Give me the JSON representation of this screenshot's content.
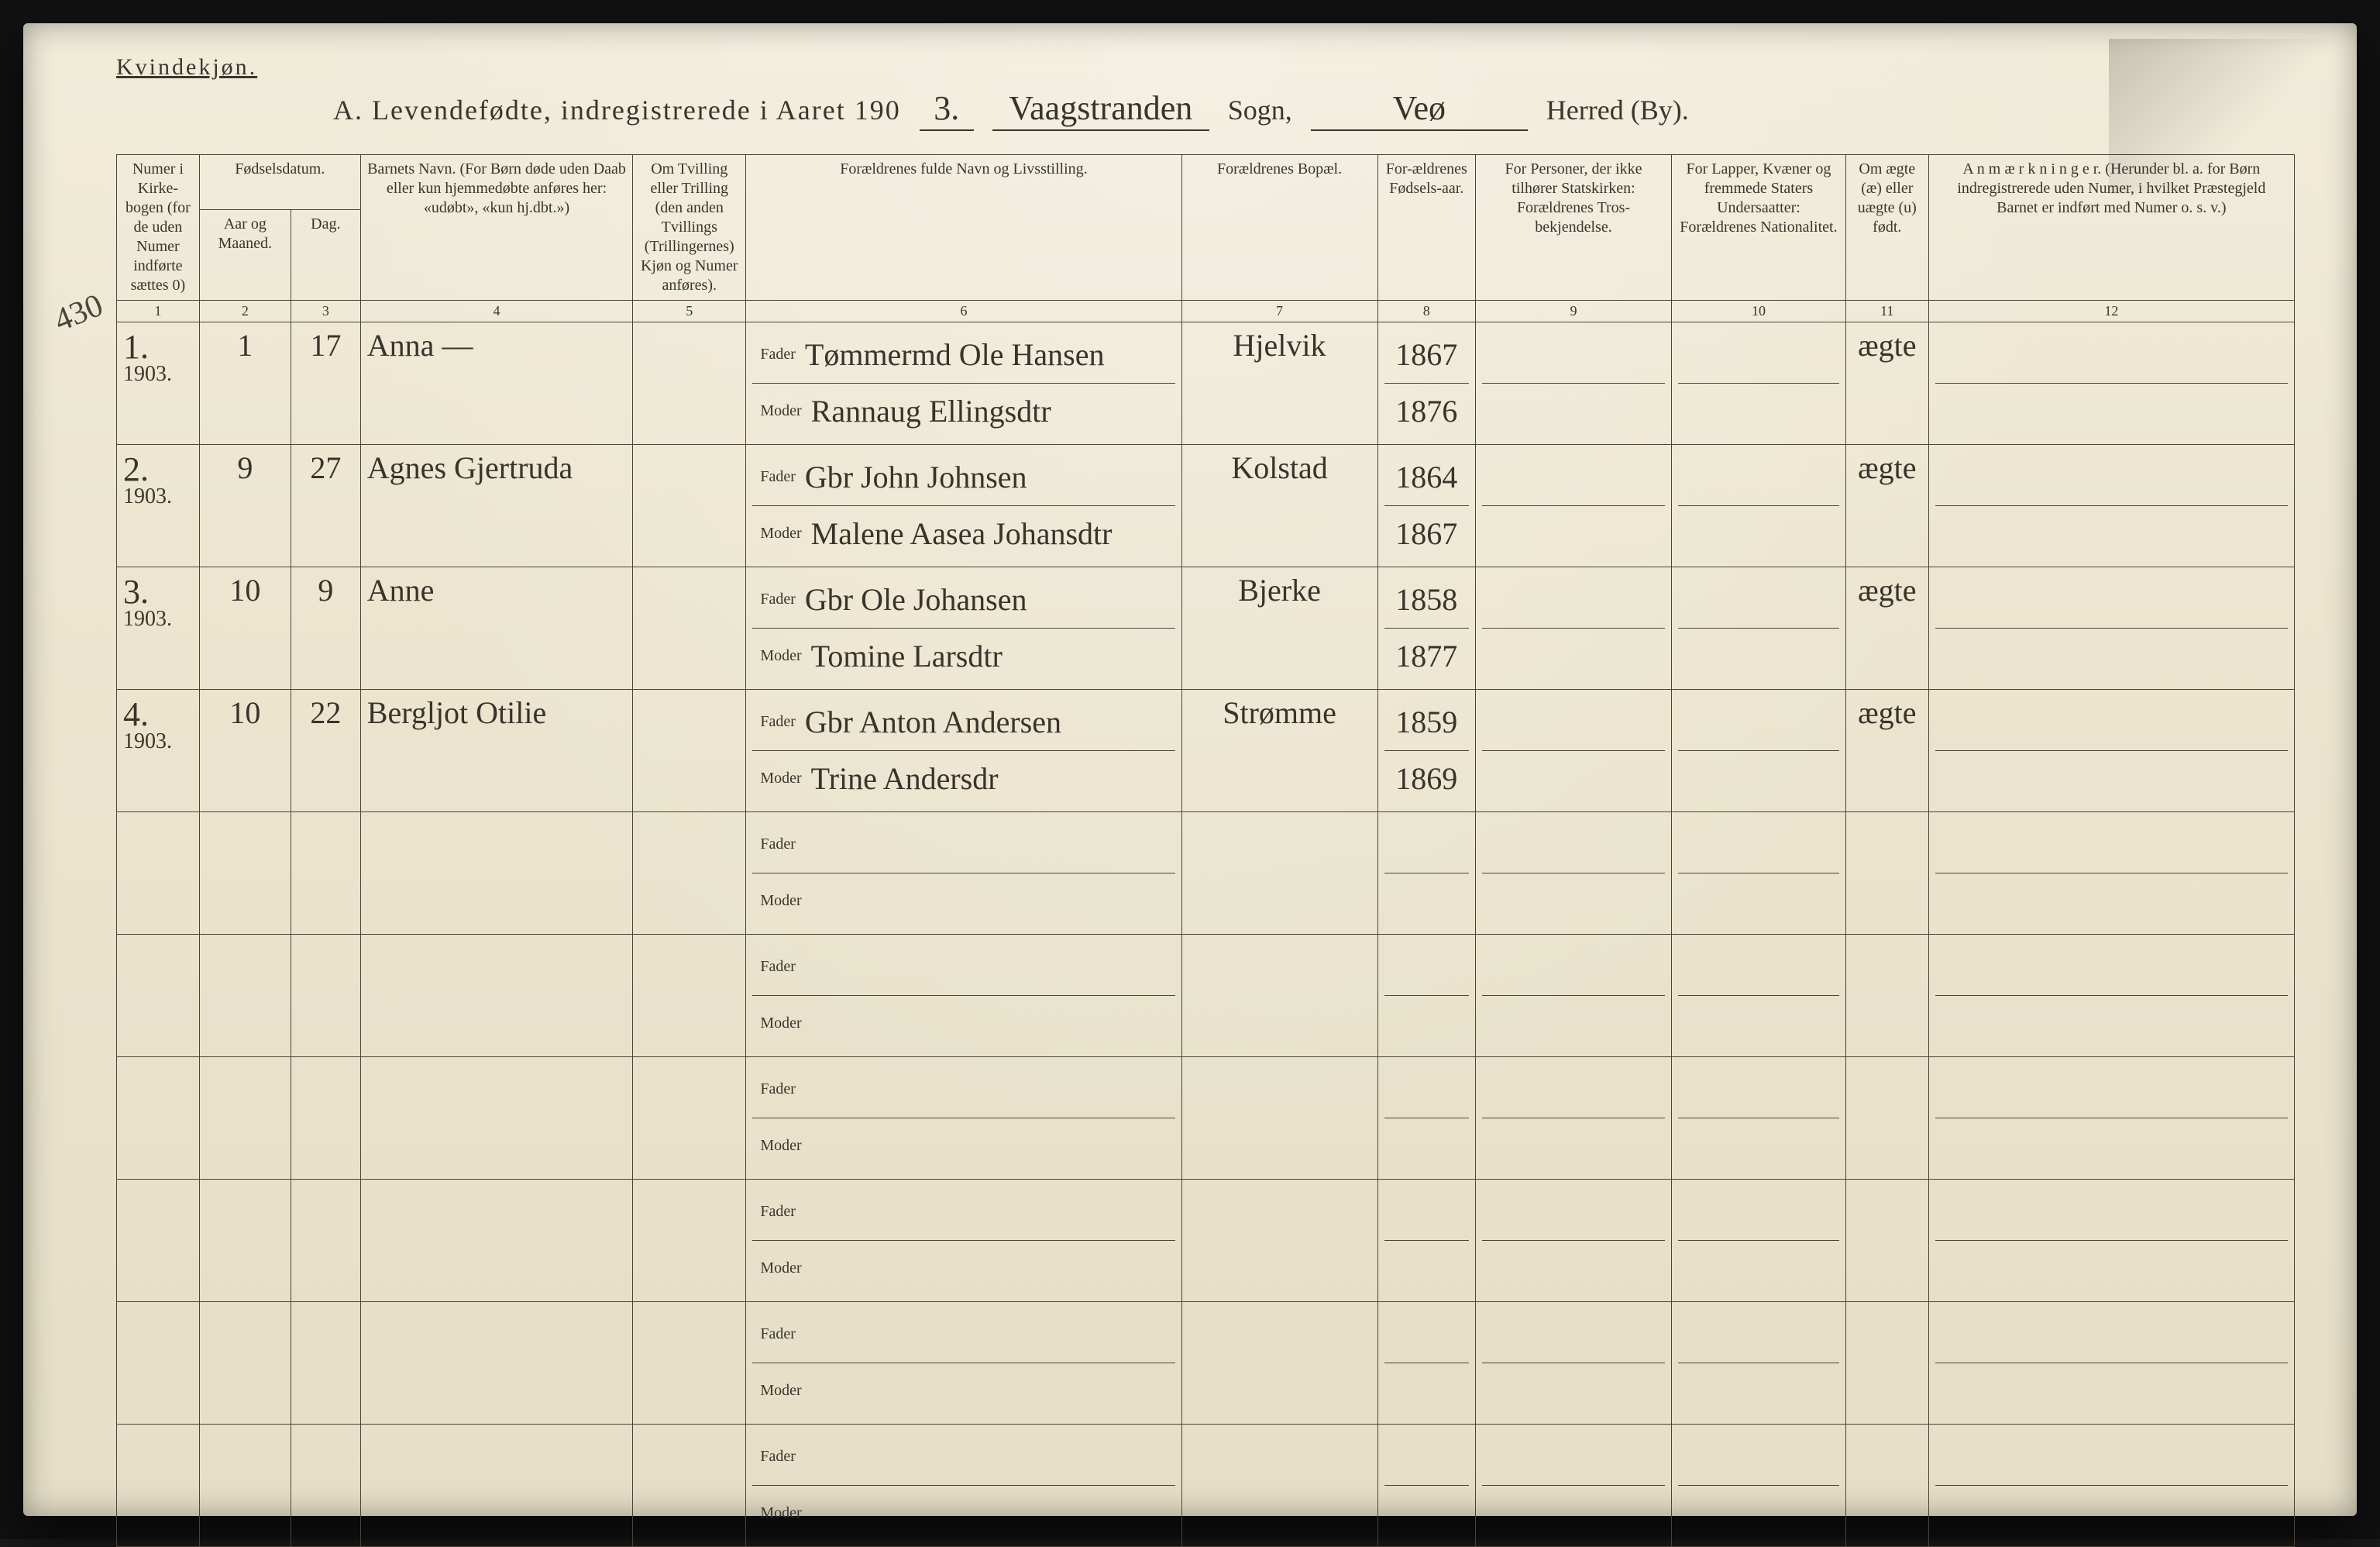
{
  "header": {
    "gender_label": "Kvindekjøn.",
    "title_lead": "A.  Levendefødte, indregistrerede i Aaret 190",
    "year_suffix": "3.",
    "sogn_label": "Sogn,",
    "sogn_value": "Vaagstranden",
    "herred_label": "Herred (By).",
    "herred_value": "Veø"
  },
  "margin_note": "430",
  "columns": {
    "c1": "Numer i Kirke-bogen (for de uden Numer indførte sættes 0)",
    "c2_group": "Fødselsdatum.",
    "c2a": "Aar og Maaned.",
    "c2b": "Dag.",
    "c4": "Barnets Navn.\n(For Børn døde uden Daab eller kun hjemmedøbte anføres her: «udøbt», «kun hj.dbt.»)",
    "c5": "Om Tvilling eller Trilling (den anden Tvillings (Trillingernes) Kjøn og Numer anføres).",
    "c6": "Forældrenes fulde Navn og Livsstilling.",
    "c7": "Forældrenes Bopæl.",
    "c8": "For-ældrenes Fødsels-aar.",
    "c9": "For Personer, der ikke tilhører Statskirken: Forældrenes Tros-bekjendelse.",
    "c10": "For Lapper, Kvæner og fremmede Staters Undersaatter: Forældrenes Nationalitet.",
    "c11": "Om ægte (æ) eller uægte (u) født.",
    "c12": "A n m æ r k n i n g e r.\n(Herunder bl. a. for Børn indregistrerede uden Numer, i hvilket Præstegjeld Barnet er indført med Numer o. s. v.)",
    "numrow": [
      "1",
      "2",
      "3",
      "4",
      "5",
      "6",
      "7",
      "8",
      "9",
      "10",
      "11",
      "12"
    ],
    "fader": "Fader",
    "moder": "Moder"
  },
  "rows": [
    {
      "no": "1.",
      "year": "1903.",
      "month": "1",
      "day": "17",
      "child": "Anna            —",
      "fader": "Tømmermd Ole Hansen",
      "moder": "Rannaug Ellingsdtr",
      "bopel": "Hjelvik",
      "f_year": "1867",
      "m_year": "1876",
      "legit": "ægte"
    },
    {
      "no": "2.",
      "year": "1903.",
      "month": "9",
      "day": "27",
      "child": "Agnes Gjertruda",
      "fader": "Gbr John Johnsen",
      "moder": "Malene Aasea Johansdtr",
      "bopel": "Kolstad",
      "f_year": "1864",
      "m_year": "1867",
      "legit": "ægte"
    },
    {
      "no": "3.",
      "year": "1903.",
      "month": "10",
      "day": "9",
      "child": "Anne",
      "fader": "Gbr Ole Johansen",
      "moder": "Tomine Larsdtr",
      "bopel": "Bjerke",
      "f_year": "1858",
      "m_year": "1877",
      "legit": "ægte"
    },
    {
      "no": "4.",
      "year": "1903.",
      "month": "10",
      "day": "22",
      "child": "Bergljot Otilie",
      "fader": "Gbr Anton Andersen",
      "moder": "Trine Andersdr",
      "bopel": "Strømme",
      "f_year": "1859",
      "m_year": "1869",
      "legit": "ægte"
    }
  ],
  "blank_rows": 6,
  "colors": {
    "paper": "#ece7d3",
    "ink": "#3b352e",
    "handwriting": "#3a332b",
    "grid": "#4a4438"
  }
}
